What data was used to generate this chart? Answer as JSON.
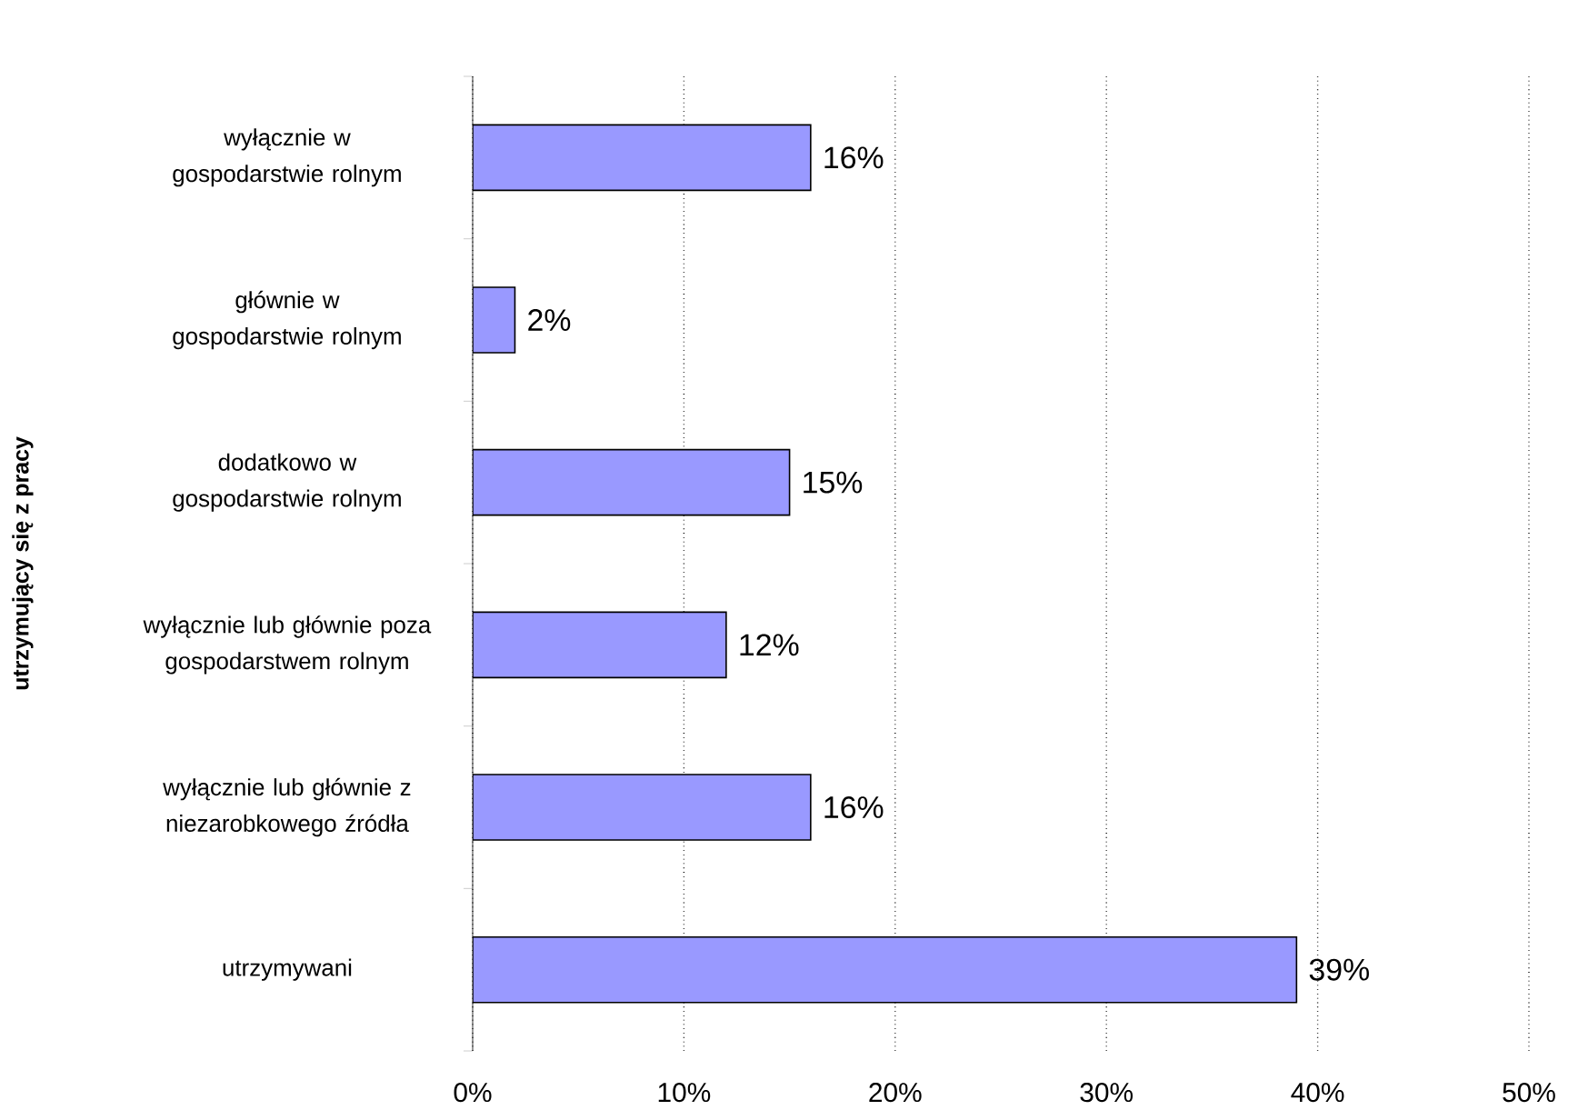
{
  "chart_data": {
    "type": "bar",
    "orientation": "horizontal",
    "ylabel": "utrzymujący się z pracy",
    "categories": [
      "wyłącznie w gospodarstwie rolnym",
      "głównie w gospodarstwie rolnym",
      "dodatkowo w gospodarstwie rolnym",
      "wyłącznie lub głównie poza gospodarstwem rolnym",
      "wyłącznie lub głównie z niezarobkowego źródła",
      "utrzymywani"
    ],
    "values": [
      16,
      2,
      15,
      12,
      16,
      39
    ],
    "value_labels": [
      "16%",
      "2%",
      "15%",
      "12%",
      "16%",
      "39%"
    ],
    "color": "#9999ff",
    "xlim": [
      0,
      50
    ],
    "xticks": [
      {
        "value": 0,
        "label": "0%"
      },
      {
        "value": 10,
        "label": "10%"
      },
      {
        "value": 20,
        "label": "20%"
      },
      {
        "value": 30,
        "label": "30%"
      },
      {
        "value": 40,
        "label": "40%"
      },
      {
        "value": 50,
        "label": "50%"
      }
    ],
    "grid": "x"
  }
}
